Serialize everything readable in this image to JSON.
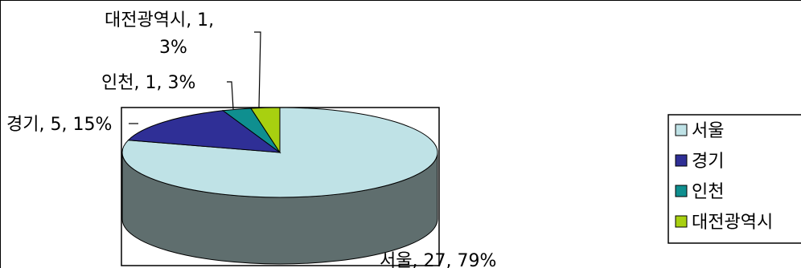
{
  "chart_data": {
    "type": "pie",
    "style": "3d",
    "slices": [
      {
        "label": "서울",
        "value": 27,
        "percent": "79%",
        "data_label": "서울, 27, 79%",
        "color": "#bfe2e6"
      },
      {
        "label": "경기",
        "value": 5,
        "percent": "15%",
        "data_label": "경기, 5, 15%",
        "color": "#2f2f96"
      },
      {
        "label": "인천",
        "value": 1,
        "percent": "3%",
        "data_label": "인천, 1, 3%",
        "color": "#0f8f8f"
      },
      {
        "label": "대전광역시",
        "value": 1,
        "percent": "3%",
        "data_label_line1": "대전광역시, 1,",
        "data_label_line2": "3%",
        "color": "#a8d010"
      }
    ],
    "legend": {
      "position": "right",
      "items": [
        "서울",
        "경기",
        "인천",
        "대전광역시"
      ]
    },
    "side_color": "#5f6e6e"
  }
}
